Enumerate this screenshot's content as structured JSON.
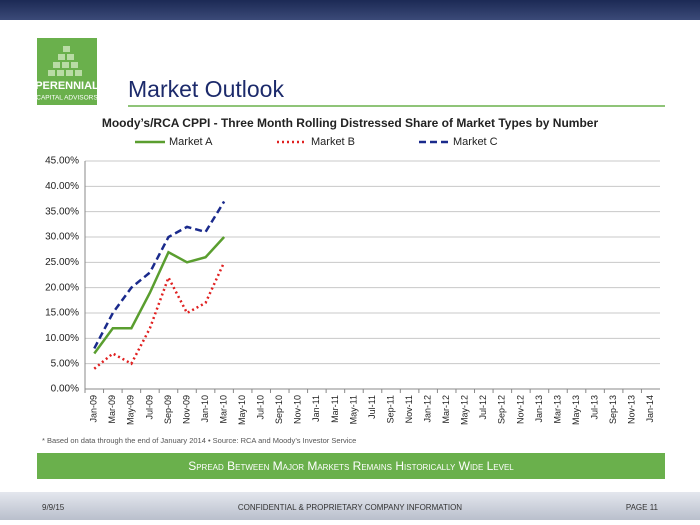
{
  "header": {
    "logo_name": "PERENNIAL",
    "logo_subtitle": "CAPITAL ADVISORS",
    "title": "Market Outlook"
  },
  "chart_data": {
    "type": "line",
    "title": "Moody’s/RCA CPPI - Three Month Rolling Distressed Share of Market Types by Number",
    "categories": [
      "Jan-09",
      "Mar-09",
      "May-09",
      "Jul-09",
      "Sep-09",
      "Nov-09",
      "Jan-10",
      "Mar-10",
      "May-10",
      "Jul-10",
      "Sep-10",
      "Nov-10",
      "Jan-11",
      "Mar-11",
      "May-11",
      "Jul-11",
      "Sep-11",
      "Nov-11",
      "Jan-12",
      "Mar-12",
      "May-12",
      "Jul-12",
      "Sep-12",
      "Nov-12",
      "Jan-13",
      "Mar-13",
      "May-13",
      "Jul-13",
      "Sep-13",
      "Nov-13",
      "Jan-14"
    ],
    "series": [
      {
        "name": "Market A",
        "color": "#5a9e2f",
        "style": "solid",
        "values": [
          7,
          12,
          12,
          19,
          27,
          25,
          26,
          30,
          null,
          null,
          null,
          null,
          null,
          null,
          null,
          null,
          null,
          null,
          null,
          null,
          null,
          null,
          null,
          null,
          null,
          null,
          null,
          null,
          null,
          null,
          null
        ]
      },
      {
        "name": "Market B",
        "color": "#e02020",
        "style": "dotted",
        "values": [
          4,
          7,
          5,
          12,
          22,
          15,
          17,
          25,
          null,
          null,
          null,
          null,
          null,
          null,
          null,
          null,
          null,
          null,
          null,
          null,
          null,
          null,
          null,
          null,
          null,
          null,
          null,
          null,
          null,
          null,
          null
        ]
      },
      {
        "name": "Market C",
        "color": "#1a2a8c",
        "style": "dashed",
        "values": [
          8,
          15,
          20,
          23,
          30,
          32,
          31,
          37,
          null,
          null,
          null,
          null,
          null,
          null,
          null,
          null,
          null,
          null,
          null,
          null,
          null,
          null,
          null,
          null,
          null,
          null,
          null,
          null,
          null,
          null,
          null
        ]
      }
    ],
    "ylim": [
      0,
      45
    ],
    "yticks": [
      {
        "value": 0,
        "label": "0.00%"
      },
      {
        "value": 5,
        "label": "5.00%"
      },
      {
        "value": 10,
        "label": "10.00%"
      },
      {
        "value": 15,
        "label": "15.00%"
      },
      {
        "value": 20,
        "label": "20.00%"
      },
      {
        "value": 25,
        "label": "25.00%"
      },
      {
        "value": 30,
        "label": "30.00%"
      },
      {
        "value": 35,
        "label": "35.00%"
      },
      {
        "value": 40,
        "label": "40.00%"
      },
      {
        "value": 45,
        "label": "45.00%"
      }
    ],
    "grid": true,
    "legend": "top"
  },
  "footnote": "* Based on data through the end of January 2014 • Source: RCA and Moody’s Investor Service",
  "banner": "Spread Between Major Markets Remains Historically Wide Level",
  "footer": {
    "date": "9/9/15",
    "center": "CONFIDENTIAL & PROPRIETARY COMPANY INFORMATION",
    "page": "PAGE 11"
  }
}
